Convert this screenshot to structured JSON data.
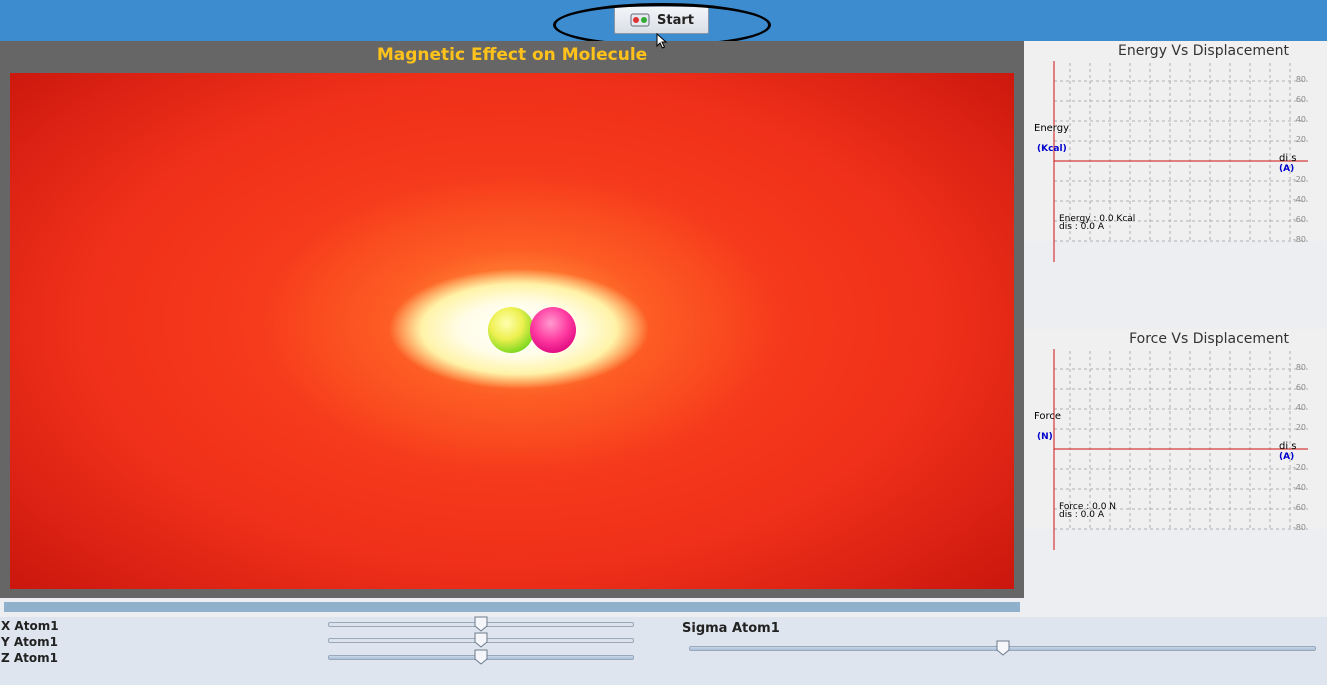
{
  "toolbar": {
    "start_label": "Start"
  },
  "simulation": {
    "title": "Magnetic Effect on Molecule"
  },
  "energy_graph": {
    "title": "Energy Vs Displacement",
    "y_label": "Energy",
    "y_unit": "(Kcal)",
    "x_label": "di s",
    "x_unit": "(A)",
    "readout_value": "Energy : 0.0 Kcal",
    "readout_dis": "dis : 0.0 A",
    "ticks": [
      "80",
      "60",
      "40",
      "20",
      "-20",
      "-40",
      "-60",
      "-80"
    ]
  },
  "force_graph": {
    "title": "Force Vs Displacement",
    "y_label": "Force",
    "y_unit": "(N)",
    "x_label": "di s",
    "x_unit": "(A)",
    "readout_value": "Force : 0.0 N",
    "readout_dis": "dis : 0.0 A",
    "ticks": [
      "80",
      "60",
      "40",
      "20",
      "-20",
      "-40",
      "-60",
      "-80"
    ]
  },
  "controls": {
    "x_label": "X Atom1",
    "y_label": "Y Atom1",
    "z_label": "Z Atom1",
    "sigma_label": "Sigma Atom1",
    "x_value": 0.5,
    "y_value": 0.5,
    "z_value": 0.5,
    "sigma_value": 0.5
  },
  "colors": {
    "accent": "#3d8cd0",
    "title": "#ffc21a",
    "axis": "#d01010",
    "unit": "#0000cc"
  }
}
